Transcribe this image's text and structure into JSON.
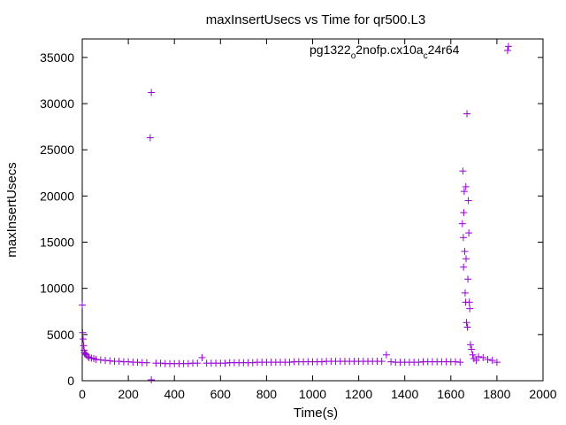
{
  "chart_data": {
    "type": "scatter",
    "title": "maxInsertUsecs vs Time for qr500.L3",
    "xlabel": "Time(s)",
    "ylabel": "maxInsertUsecs",
    "xlim": [
      0,
      2000
    ],
    "ylim": [
      0,
      37000
    ],
    "x_ticks": [
      0,
      200,
      400,
      600,
      800,
      1000,
      1200,
      1400,
      1600,
      1800,
      2000
    ],
    "y_ticks": [
      0,
      5000,
      10000,
      15000,
      20000,
      25000,
      30000,
      35000
    ],
    "marker": "+",
    "color": "#9400d3",
    "legend": {
      "position": "top-right",
      "label_parts": [
        "pg1322",
        "o",
        "2nofp.cx10a",
        "c",
        "24r64"
      ]
    },
    "series": [
      {
        "name": "pg1322_o2nofp.cx10a_c24r64",
        "points": [
          [
            0,
            8200
          ],
          [
            2,
            5200
          ],
          [
            4,
            4500
          ],
          [
            6,
            3800
          ],
          [
            8,
            3300
          ],
          [
            10,
            3000
          ],
          [
            14,
            2900
          ],
          [
            18,
            2800
          ],
          [
            24,
            2600
          ],
          [
            30,
            2500
          ],
          [
            40,
            2450
          ],
          [
            50,
            2400
          ],
          [
            60,
            2300
          ],
          [
            80,
            2250
          ],
          [
            100,
            2200
          ],
          [
            120,
            2150
          ],
          [
            140,
            2100
          ],
          [
            160,
            2100
          ],
          [
            180,
            2050
          ],
          [
            200,
            2050
          ],
          [
            220,
            2000
          ],
          [
            240,
            2000
          ],
          [
            260,
            1950
          ],
          [
            280,
            1950
          ],
          [
            295,
            26300
          ],
          [
            300,
            31200
          ],
          [
            300,
            100
          ],
          [
            320,
            1900
          ],
          [
            340,
            1900
          ],
          [
            360,
            1850
          ],
          [
            380,
            1850
          ],
          [
            400,
            1850
          ],
          [
            420,
            1850
          ],
          [
            440,
            1850
          ],
          [
            460,
            1850
          ],
          [
            480,
            1900
          ],
          [
            500,
            1900
          ],
          [
            520,
            2500
          ],
          [
            540,
            1900
          ],
          [
            560,
            1900
          ],
          [
            580,
            1900
          ],
          [
            600,
            1900
          ],
          [
            620,
            1900
          ],
          [
            640,
            1950
          ],
          [
            660,
            1950
          ],
          [
            680,
            1950
          ],
          [
            700,
            1950
          ],
          [
            720,
            1950
          ],
          [
            740,
            1950
          ],
          [
            760,
            2000
          ],
          [
            780,
            2000
          ],
          [
            800,
            2000
          ],
          [
            820,
            2000
          ],
          [
            840,
            2000
          ],
          [
            860,
            2000
          ],
          [
            880,
            2000
          ],
          [
            900,
            2000
          ],
          [
            920,
            2050
          ],
          [
            940,
            2050
          ],
          [
            960,
            2050
          ],
          [
            980,
            2050
          ],
          [
            1000,
            2050
          ],
          [
            1020,
            2050
          ],
          [
            1040,
            2050
          ],
          [
            1060,
            2100
          ],
          [
            1080,
            2100
          ],
          [
            1100,
            2100
          ],
          [
            1120,
            2100
          ],
          [
            1140,
            2100
          ],
          [
            1160,
            2100
          ],
          [
            1180,
            2100
          ],
          [
            1200,
            2100
          ],
          [
            1220,
            2100
          ],
          [
            1240,
            2100
          ],
          [
            1260,
            2100
          ],
          [
            1280,
            2100
          ],
          [
            1300,
            2100
          ],
          [
            1320,
            2800
          ],
          [
            1340,
            2050
          ],
          [
            1360,
            2000
          ],
          [
            1380,
            2000
          ],
          [
            1400,
            2000
          ],
          [
            1420,
            2000
          ],
          [
            1440,
            2000
          ],
          [
            1460,
            2000
          ],
          [
            1480,
            2050
          ],
          [
            1500,
            2050
          ],
          [
            1520,
            2050
          ],
          [
            1540,
            2050
          ],
          [
            1560,
            2050
          ],
          [
            1580,
            2050
          ],
          [
            1600,
            2050
          ],
          [
            1620,
            2050
          ],
          [
            1640,
            2000
          ],
          [
            1650,
            17000
          ],
          [
            1652,
            22700
          ],
          [
            1654,
            15500
          ],
          [
            1655,
            12300
          ],
          [
            1656,
            18200
          ],
          [
            1658,
            20500
          ],
          [
            1660,
            14000
          ],
          [
            1662,
            9500
          ],
          [
            1664,
            8500
          ],
          [
            1665,
            21000
          ],
          [
            1666,
            13200
          ],
          [
            1668,
            6300
          ],
          [
            1670,
            28900
          ],
          [
            1672,
            5800
          ],
          [
            1674,
            11000
          ],
          [
            1676,
            19500
          ],
          [
            1678,
            16000
          ],
          [
            1680,
            8500
          ],
          [
            1682,
            7800
          ],
          [
            1685,
            3900
          ],
          [
            1690,
            3400
          ],
          [
            1695,
            2800
          ],
          [
            1700,
            2400
          ],
          [
            1710,
            2200
          ],
          [
            1720,
            2600
          ],
          [
            1740,
            2500
          ],
          [
            1760,
            2300
          ],
          [
            1780,
            2200
          ],
          [
            1800,
            2000
          ],
          [
            1850,
            36200
          ]
        ]
      }
    ]
  }
}
